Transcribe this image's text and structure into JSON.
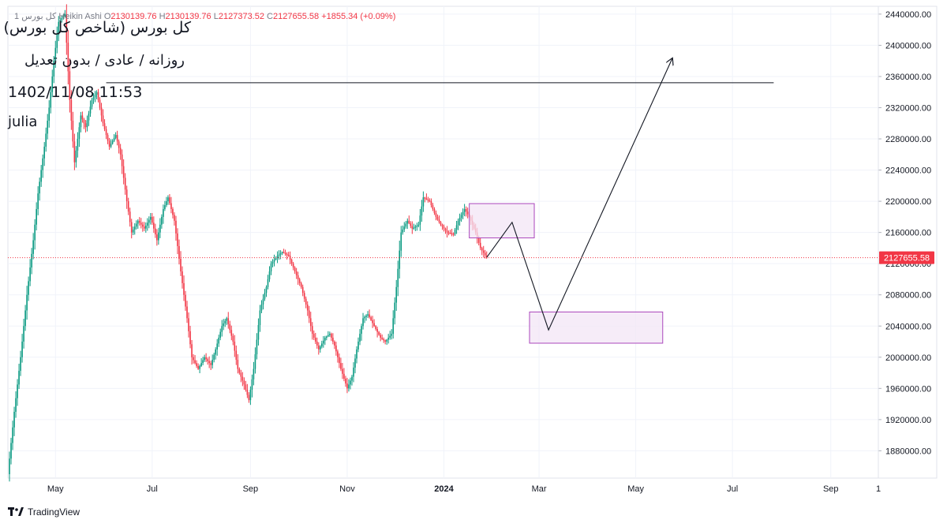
{
  "header": {
    "ohlc_prefix": "1  کل بورس  Heikin Ashi",
    "open_label": "O",
    "open": "2130139.76",
    "high_label": "H",
    "high": "2130139.76",
    "low_label": "L",
    "low": "2127373.52",
    "close_label": "C",
    "close": "2127655.58",
    "change": "+1855.34 (+0.09%)"
  },
  "title_block": {
    "line1": "کل بورس (شاخص کل بورس)",
    "line2": "روزانه / عادی / بدون تعدیل",
    "line3": "1402/11/08 11:53",
    "line4": "julia"
  },
  "footer": {
    "brand": "TradingView"
  },
  "colors": {
    "up": "#089981",
    "down": "#f23645",
    "box_fill": "#f3e5f5",
    "box_stroke": "#ab47bc",
    "last_price": "#f23645",
    "grid": "#f0f3fa"
  },
  "chart_data": {
    "type": "candlestick",
    "style": "Heikin Ashi",
    "y_axis": {
      "ylim": [
        1845000,
        2450000
      ],
      "ticks": [
        1880000,
        1920000,
        1960000,
        2000000,
        2040000,
        2080000,
        2120000,
        2160000,
        2200000,
        2240000,
        2280000,
        2320000,
        2360000,
        2400000,
        2440000
      ],
      "tick_labels": [
        "1880000.00",
        "1920000.00",
        "1960000.00",
        "2000000.00",
        "2040000.00",
        "2080000.00",
        "2120000.00",
        "2160000.00",
        "2200000.00",
        "2240000.00",
        "2280000.00",
        "2320000.00",
        "2360000.00",
        "2400000.00",
        "2440000.00"
      ]
    },
    "x_axis": {
      "start": "2023-04-01",
      "end": "2024-10-01",
      "tick_dates": [
        "2023-05-01",
        "2023-07-01",
        "2023-09-01",
        "2023-11-01",
        "2024-01-01",
        "2024-03-01",
        "2024-05-01",
        "2024-07-01",
        "2024-09-01",
        "2024-10-01"
      ],
      "tick_labels": [
        "May",
        "Jul",
        "Sep",
        "Nov",
        "2024",
        "Mar",
        "May",
        "Jul",
        "Sep",
        "1"
      ]
    },
    "last_price": 2127655.58,
    "last_price_label": "2127655.58",
    "path": [
      [
        "2023-04-01",
        1850000
      ],
      [
        "2023-04-05",
        1930000
      ],
      [
        "2023-04-09",
        2000000
      ],
      [
        "2023-04-13",
        2080000
      ],
      [
        "2023-04-17",
        2150000
      ],
      [
        "2023-04-20",
        2210000
      ],
      [
        "2023-04-24",
        2270000
      ],
      [
        "2023-04-27",
        2320000
      ],
      [
        "2023-04-30",
        2380000
      ],
      [
        "2023-05-03",
        2430000
      ],
      [
        "2023-05-07",
        2440000
      ],
      [
        "2023-05-10",
        2330000
      ],
      [
        "2023-05-13",
        2250000
      ],
      [
        "2023-05-17",
        2310000
      ],
      [
        "2023-05-20",
        2295000
      ],
      [
        "2023-05-24",
        2330000
      ],
      [
        "2023-05-27",
        2340000
      ],
      [
        "2023-05-31",
        2300000
      ],
      [
        "2023-06-04",
        2270000
      ],
      [
        "2023-06-08",
        2285000
      ],
      [
        "2023-06-11",
        2260000
      ],
      [
        "2023-06-15",
        2200000
      ],
      [
        "2023-06-18",
        2160000
      ],
      [
        "2023-06-22",
        2175000
      ],
      [
        "2023-06-26",
        2165000
      ],
      [
        "2023-06-30",
        2180000
      ],
      [
        "2023-07-04",
        2150000
      ],
      [
        "2023-07-08",
        2190000
      ],
      [
        "2023-07-11",
        2205000
      ],
      [
        "2023-07-15",
        2175000
      ],
      [
        "2023-07-19",
        2110000
      ],
      [
        "2023-07-23",
        2050000
      ],
      [
        "2023-07-26",
        2000000
      ],
      [
        "2023-07-30",
        1985000
      ],
      [
        "2023-08-03",
        2000000
      ],
      [
        "2023-08-07",
        1990000
      ],
      [
        "2023-08-10",
        2010000
      ],
      [
        "2023-08-14",
        2040000
      ],
      [
        "2023-08-17",
        2050000
      ],
      [
        "2023-08-21",
        2020000
      ],
      [
        "2023-08-24",
        1985000
      ],
      [
        "2023-08-28",
        1965000
      ],
      [
        "2023-08-31",
        1945000
      ],
      [
        "2023-09-03",
        1985000
      ],
      [
        "2023-09-07",
        2060000
      ],
      [
        "2023-09-11",
        2090000
      ],
      [
        "2023-09-14",
        2120000
      ],
      [
        "2023-09-18",
        2130000
      ],
      [
        "2023-09-21",
        2135000
      ],
      [
        "2023-09-25",
        2130000
      ],
      [
        "2023-09-29",
        2110000
      ],
      [
        "2023-10-03",
        2090000
      ],
      [
        "2023-10-07",
        2060000
      ],
      [
        "2023-10-10",
        2030000
      ],
      [
        "2023-10-14",
        2010000
      ],
      [
        "2023-10-18",
        2025000
      ],
      [
        "2023-10-21",
        2030000
      ],
      [
        "2023-10-24",
        2015000
      ],
      [
        "2023-10-28",
        1985000
      ],
      [
        "2023-11-01",
        1960000
      ],
      [
        "2023-11-04",
        1975000
      ],
      [
        "2023-11-07",
        2010000
      ],
      [
        "2023-11-11",
        2050000
      ],
      [
        "2023-11-14",
        2055000
      ],
      [
        "2023-11-18",
        2040000
      ],
      [
        "2023-11-22",
        2025000
      ],
      [
        "2023-11-25",
        2020000
      ],
      [
        "2023-11-29",
        2030000
      ],
      [
        "2023-12-02",
        2090000
      ],
      [
        "2023-12-05",
        2160000
      ],
      [
        "2023-12-09",
        2175000
      ],
      [
        "2023-12-12",
        2165000
      ],
      [
        "2023-12-16",
        2170000
      ],
      [
        "2023-12-19",
        2205000
      ],
      [
        "2023-12-23",
        2200000
      ],
      [
        "2023-12-27",
        2180000
      ],
      [
        "2023-12-30",
        2170000
      ],
      [
        "2024-01-03",
        2160000
      ],
      [
        "2024-01-07",
        2158000
      ],
      [
        "2024-01-10",
        2175000
      ],
      [
        "2024-01-14",
        2190000
      ],
      [
        "2024-01-17",
        2180000
      ],
      [
        "2024-01-21",
        2160000
      ],
      [
        "2024-01-24",
        2140000
      ],
      [
        "2024-01-28",
        2127655
      ]
    ],
    "annotations": {
      "horizontal_line": {
        "y": 2352000,
        "x_start": "2023-06-02",
        "x_end": "2024-07-27"
      },
      "supply_box": {
        "x_start": "2024-01-17",
        "x_end": "2024-02-27",
        "y_top": 2197000,
        "y_bottom": 2153000
      },
      "demand_box": {
        "x_start": "2024-02-24",
        "x_end": "2024-05-18",
        "y_top": 2058000,
        "y_bottom": 2018000
      },
      "projection_path": [
        [
          "2024-01-28",
          2128000
        ],
        [
          "2024-02-13",
          2173000
        ],
        [
          "2024-03-07",
          2035000
        ],
        [
          "2024-05-24",
          2383000
        ]
      ]
    }
  }
}
